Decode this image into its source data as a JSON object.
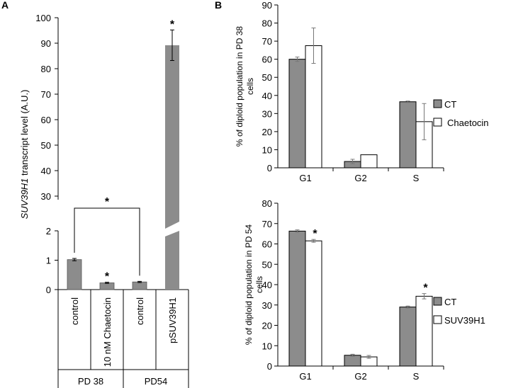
{
  "panels": {
    "a": "A",
    "b": "B"
  },
  "chart_data": [
    {
      "id": "A",
      "type": "bar",
      "ylabel_italic": "SUV39H1",
      "ylabel_rest": " transcript level (A.U.)",
      "categories": [
        "control",
        "10 nM Chaetocin",
        "control",
        "pSUV39H1"
      ],
      "groups": [
        {
          "label": "PD 38",
          "categories": [
            0,
            1
          ]
        },
        {
          "label": "PD54",
          "categories": [
            2,
            3
          ]
        }
      ],
      "values": [
        1.02,
        0.23,
        0.26,
        89.2
      ],
      "errors": [
        0.04,
        0.02,
        0.02,
        6.0
      ],
      "color": "#8c8c8c",
      "broken_axis": {
        "lower_range": [
          0,
          2
        ],
        "lower_ticks": [
          0,
          1,
          2
        ],
        "upper_range": [
          20,
          100
        ],
        "upper_ticks": [
          30,
          40,
          50,
          60,
          70,
          80,
          90,
          100
        ]
      },
      "significance": [
        {
          "category": 1,
          "symbol": "*"
        },
        {
          "category": 3,
          "symbol": "*"
        }
      ],
      "bracket": {
        "from": 0,
        "to": 2,
        "symbol": "*"
      }
    },
    {
      "id": "B-top",
      "type": "bar",
      "ylabel": "% of  diploid population in PD 38 cells",
      "categories": [
        "G1",
        "G2",
        "S"
      ],
      "ylim": [
        0,
        90
      ],
      "yticks": [
        0,
        10,
        20,
        30,
        40,
        50,
        60,
        70,
        80,
        90
      ],
      "series": [
        {
          "name": "CT",
          "color": "#8c8c8c",
          "values": [
            60,
            3.5,
            36.5
          ],
          "errors": [
            1.2,
            1.2,
            0.4
          ]
        },
        {
          "name": "Chaetocin",
          "color": "#ffffff",
          "values": [
            67.5,
            7.2,
            25.5
          ],
          "errors": [
            9.8,
            0,
            10
          ]
        }
      ],
      "significance": []
    },
    {
      "id": "B-bottom",
      "type": "bar",
      "ylabel": "% of  diploid population in PD 54 cells",
      "categories": [
        "G1",
        "G2",
        "S"
      ],
      "ylim": [
        0,
        80
      ],
      "yticks": [
        0,
        10,
        20,
        30,
        40,
        50,
        60,
        70,
        80
      ],
      "series": [
        {
          "name": "CT",
          "color": "#8c8c8c",
          "values": [
            66.3,
            5.3,
            29
          ],
          "errors": [
            0.6,
            0.5,
            0.5
          ]
        },
        {
          "name": "SUV39H1",
          "color": "#ffffff",
          "values": [
            61.5,
            4.5,
            34.3
          ],
          "errors": [
            0.7,
            0.7,
            1.3
          ]
        }
      ],
      "significance": [
        {
          "category": 0,
          "series": 1,
          "symbol": "*"
        },
        {
          "category": 2,
          "series": 1,
          "symbol": "*"
        }
      ]
    }
  ]
}
